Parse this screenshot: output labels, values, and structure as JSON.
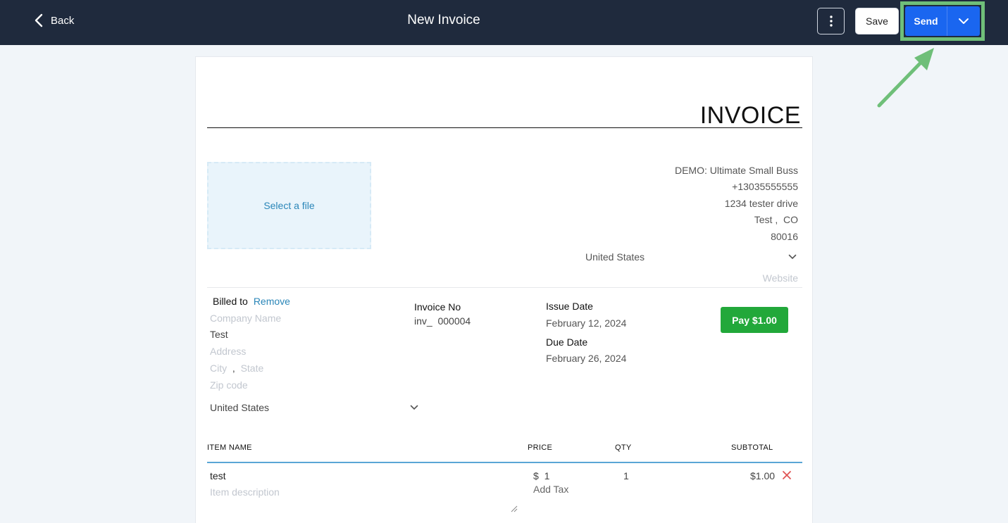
{
  "header": {
    "back_label": "Back",
    "title": "New Invoice",
    "save_label": "Save",
    "send_label": "Send"
  },
  "invoice": {
    "heading": "INVOICE",
    "logo_placeholder": "Select a file",
    "company": {
      "name": "DEMO: Ultimate Small Buss",
      "phone": "+13035555555",
      "address": "1234 tester drive",
      "city": "Test",
      "state": "CO",
      "zip": "80016",
      "country": "United States",
      "website_placeholder": "Website"
    },
    "billed_to": {
      "label": "Billed to",
      "remove_label": "Remove",
      "company_placeholder": "Company Name",
      "name": "Test",
      "address_placeholder": "Address",
      "city_placeholder": "City",
      "state_placeholder": "State",
      "zip_placeholder": "Zip code",
      "country": "United States"
    },
    "invoice_no_label": "Invoice No",
    "invoice_prefix": "inv_",
    "invoice_number": "000004",
    "issue_date_label": "Issue Date",
    "issue_date": "February 12, 2024",
    "due_date_label": "Due Date",
    "due_date": "February 26, 2024",
    "pay_label": "Pay $1.00"
  },
  "items": {
    "headers": {
      "name": "ITEM NAME",
      "price": "PRICE",
      "qty": "QTY",
      "subtotal": "SUBTOTAL"
    },
    "rows": [
      {
        "name": "test",
        "description_placeholder": "Item description",
        "currency": "$",
        "price": "1",
        "add_tax": "Add Tax",
        "qty": "1",
        "subtotal": "$1.00"
      }
    ]
  },
  "colors": {
    "topbar": "#1f2a3d",
    "send": "#1a66f0",
    "pay": "#22a83a",
    "annotation": "#6fbf79",
    "link": "#2a86b8",
    "delete": "#e05555"
  },
  "icons": [
    "chevron-left-icon",
    "kebab-menu-icon",
    "chevron-down-icon",
    "annotation-arrow-icon",
    "close-icon",
    "resize-handle-icon"
  ]
}
